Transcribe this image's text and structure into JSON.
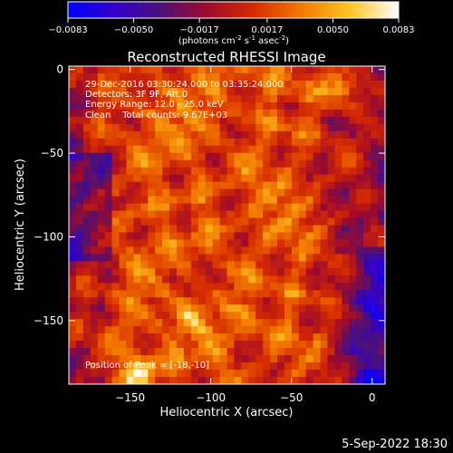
{
  "colorbar": {
    "ticks": [
      "-0.0083",
      "-0.0050",
      "-0.0017",
      "0.0017",
      "0.0050",
      "0.0083"
    ],
    "min": -0.0083,
    "max": 0.0083,
    "unit_prefix": "(photons cm",
    "unit_sup1": "-2",
    "unit_mid": " s",
    "unit_sup2": "-1",
    "unit_mid2": " asec",
    "unit_sup3": "-2",
    "unit_suffix": ")"
  },
  "annotations": {
    "time_range": "29-Dec-2016 03:30:24.000 to 03:35:24.000",
    "detectors": "Detectors: 3F 9F, Att 0",
    "energy": "Energy Range: 12.0 - 25.0 keV",
    "clean": "Clean    Total counts: 9.67E+03",
    "peak": "Position of Peak = [-18,-10]"
  },
  "footer": {
    "date": "5-Sep-2022 18:30"
  },
  "colors": {
    "background": "#000000",
    "text": "#ffffff",
    "colormap": [
      "#0000ff",
      "#3300cc",
      "#4c1178",
      "#9e0a2c",
      "#d52b00",
      "#f27600",
      "#fcc324",
      "#ffffff"
    ]
  },
  "chart_data": {
    "type": "heatmap",
    "title": "Reconstructed RHESSI Image",
    "xlabel": "Heliocentric X (arcsec)",
    "ylabel": "Heliocentric Y (arcsec)",
    "xlim": [
      -188,
      8
    ],
    "ylim": [
      -188,
      2
    ],
    "xticks": [
      -150,
      -100,
      -50,
      0
    ],
    "xtick_labels": [
      "−150",
      "−100",
      "−50",
      "0"
    ],
    "yticks": [
      0,
      -50,
      -100,
      -150
    ],
    "yticks_labels": [
      "0",
      "−50",
      "−100",
      "−150"
    ],
    "colorbar_range": [
      -0.0083,
      0.0083
    ],
    "peak_position": [
      -18,
      -10
    ],
    "grid": false
  }
}
